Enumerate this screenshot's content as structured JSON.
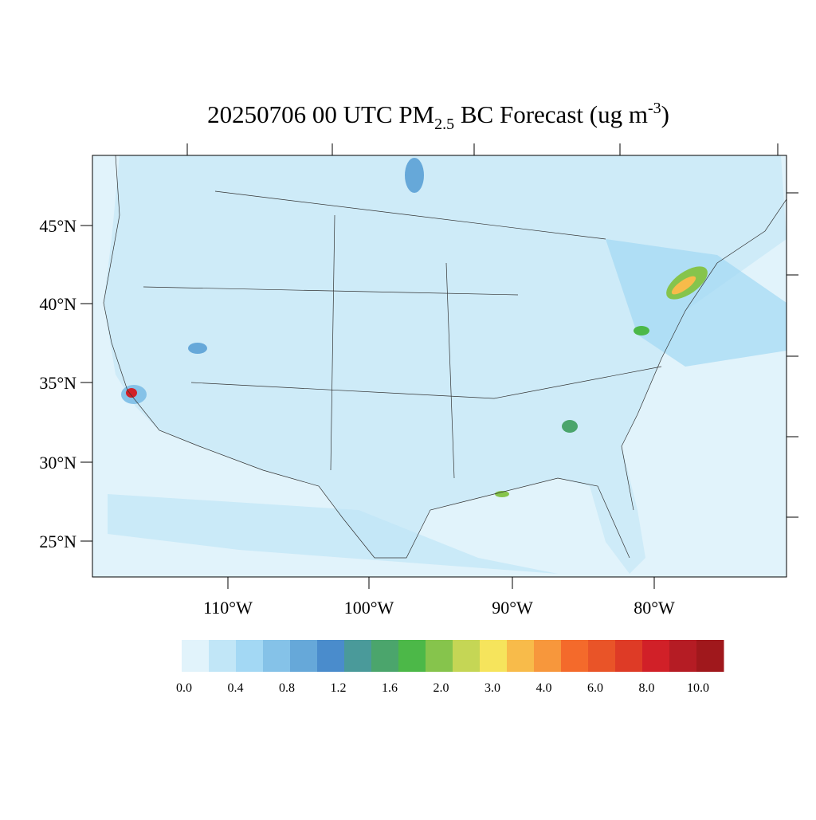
{
  "title": {
    "main": "20250706 00 UTC PM",
    "subscript": "2.5",
    "middle": " BC Forecast (ug m",
    "superscript": "-3",
    "end": ")"
  },
  "lat_labels": [
    "45°N",
    "40°N",
    "35°N",
    "30°N",
    "25°N"
  ],
  "lon_labels": [
    "110°W",
    "100°W",
    "90°W",
    "80°W"
  ],
  "colorbar": {
    "colors": [
      "#e1f3fb",
      "#c1e6f7",
      "#a3d8f4",
      "#85c2e8",
      "#66a8d9",
      "#4a8ccc",
      "#4a9a9a",
      "#4ba56c",
      "#4cb848",
      "#86c44c",
      "#c5d655",
      "#f6e45c",
      "#f8bb4a",
      "#f7973c",
      "#f46a2b",
      "#e95428",
      "#de3b26",
      "#d12028",
      "#b51c24",
      "#a0181c"
    ],
    "labels": [
      "0.0",
      "0.4",
      "0.8",
      "1.2",
      "1.6",
      "2.0",
      "3.0",
      "4.0",
      "6.0",
      "8.0",
      "10.0"
    ]
  }
}
